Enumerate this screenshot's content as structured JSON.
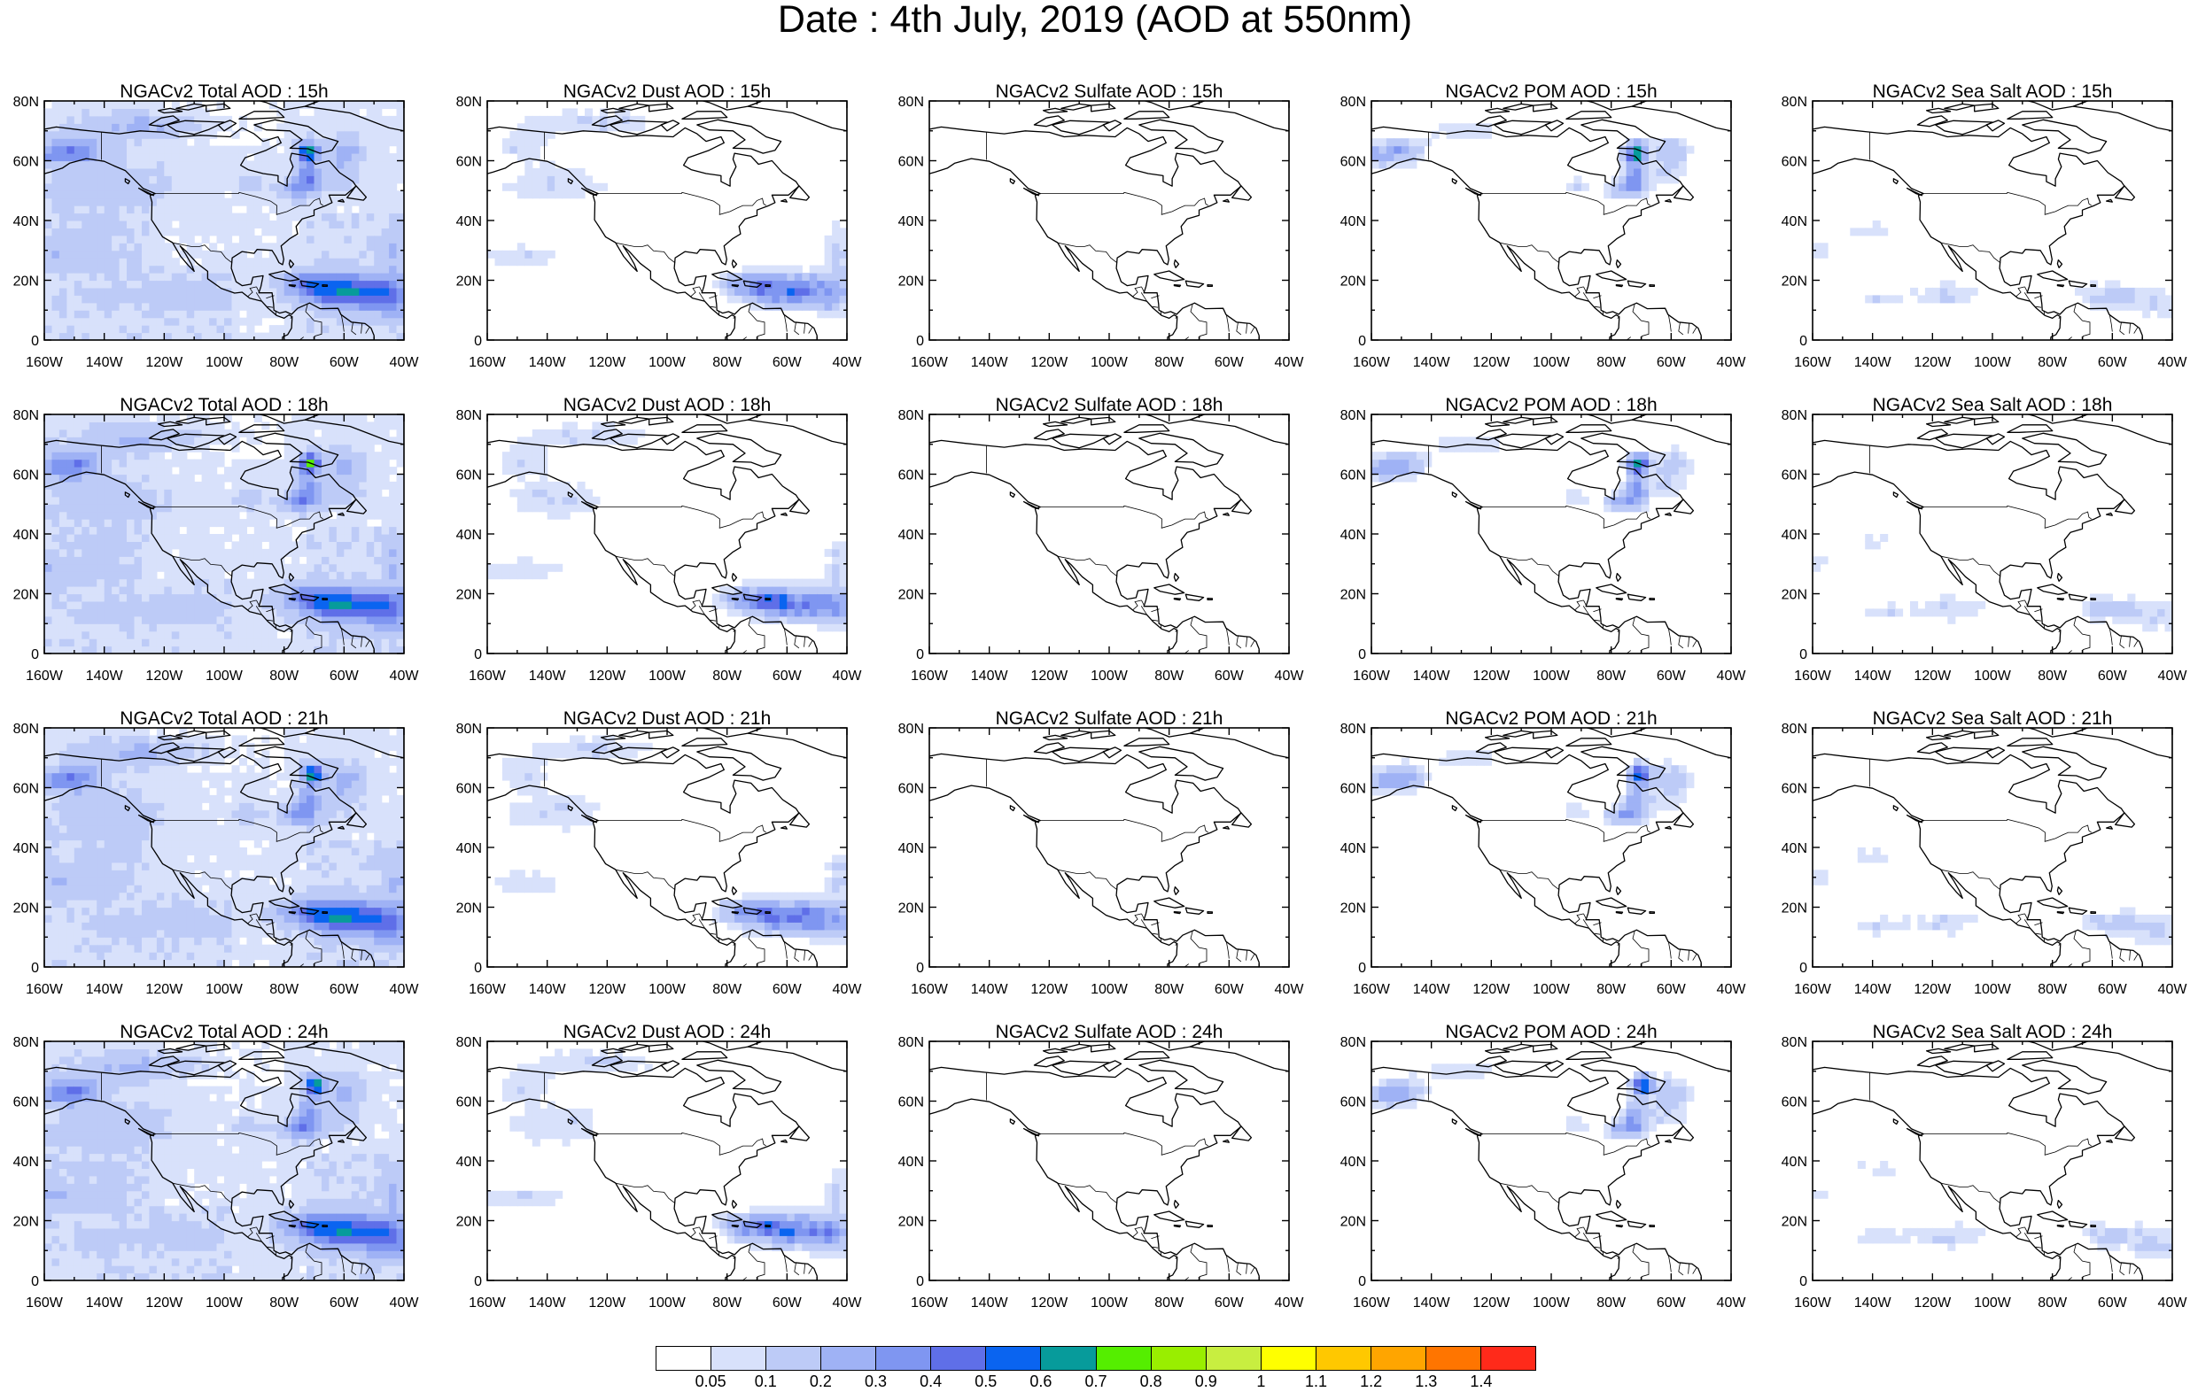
{
  "title": "Date : 4th July, 2019 (AOD at 550nm)",
  "map": {
    "lon_labels": [
      "160W",
      "140W",
      "120W",
      "100W",
      "80W",
      "60W",
      "40W"
    ],
    "lat_labels": [
      "0",
      "20N",
      "40N",
      "60N",
      "80N"
    ],
    "lon_range": [
      -160,
      -40
    ],
    "lat_range": [
      0,
      80
    ]
  },
  "rows": [
    {
      "hour": "15h",
      "titles": [
        "NGACv2 Total AOD : 15h",
        "NGACv2 Dust AOD : 15h",
        "NGACv2 Sulfate AOD : 15h",
        "NGACv2 POM AOD : 15h",
        "NGACv2 Sea Salt AOD : 15h"
      ]
    },
    {
      "hour": "18h",
      "titles": [
        "NGACv2 Total AOD : 18h",
        "NGACv2 Dust AOD : 18h",
        "NGACv2 Sulfate AOD : 18h",
        "NGACv2 POM AOD : 18h",
        "NGACv2 Sea Salt AOD : 18h"
      ]
    },
    {
      "hour": "21h",
      "titles": [
        "NGACv2 Total AOD : 21h",
        "NGACv2 Dust AOD : 21h",
        "NGACv2 Sulfate AOD : 21h",
        "NGACv2 POM AOD : 21h",
        "NGACv2 Sea Salt AOD : 21h"
      ]
    },
    {
      "hour": "24h",
      "titles": [
        "NGACv2 Total AOD : 24h",
        "NGACv2 Dust AOD : 24h",
        "NGACv2 Sulfate AOD : 24h",
        "NGACv2 POM AOD : 24h",
        "NGACv2 Sea Salt  AOD : 24h"
      ]
    }
  ],
  "colorbar": {
    "colors": [
      "#ffffff",
      "#d8e1fb",
      "#bdcbf7",
      "#9fb2f5",
      "#7f96f1",
      "#5f6fe8",
      "#0a64f0",
      "#079b9b",
      "#55ee00",
      "#99ee00",
      "#c8ee40",
      "#ffff00",
      "#ffc800",
      "#ffa500",
      "#ff7500",
      "#ff2a1a"
    ],
    "labels": [
      "0.05",
      "0.1",
      "0.2",
      "0.3",
      "0.4",
      "0.5",
      "0.6",
      "0.7",
      "0.8",
      "0.9",
      "1",
      "1.1",
      "1.2",
      "1.3",
      "1.4"
    ]
  }
}
